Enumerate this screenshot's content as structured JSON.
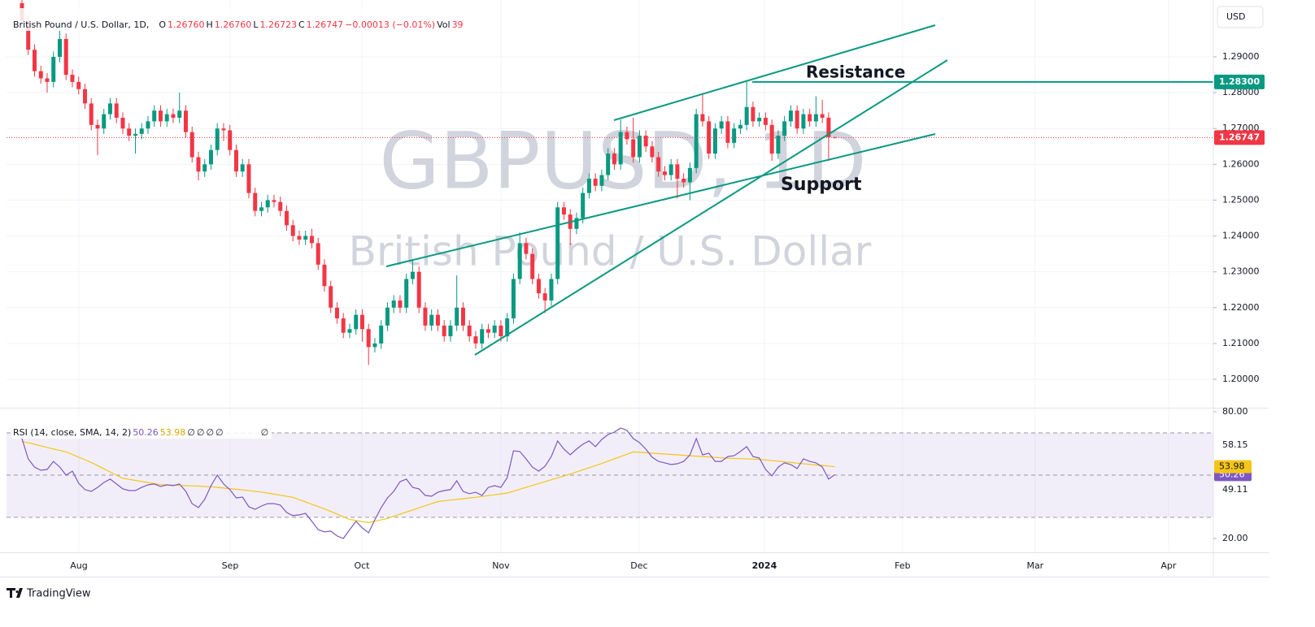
{
  "header": {
    "symbol": "British Pound / U.S. Dollar, 1D,",
    "ohlc": [
      {
        "key": "O",
        "value": "1.26760"
      },
      {
        "key": "H",
        "value": "1.26760"
      },
      {
        "key": "L",
        "value": "1.26723"
      },
      {
        "key": "C",
        "value": "1.26747"
      }
    ],
    "change": "−0.00013 (−0.01%)",
    "volume": {
      "key": "Vol",
      "value": "39"
    },
    "currency": "USD"
  },
  "watermark": {
    "title": "GBPUSD, 1D",
    "subtitle": "British Pound / U.S. Dollar"
  },
  "annotations": {
    "resistance": "Resistance",
    "support": "Support"
  },
  "footer": "TradingView",
  "chart_data": [
    {
      "type": "candlestick",
      "up_color": "#089981",
      "down_color": "#f23645",
      "open": [
        1.305,
        1.3,
        1.292,
        1.286,
        1.284,
        1.283,
        1.29,
        1.295,
        1.285,
        1.283,
        1.281,
        1.277,
        1.271,
        1.27,
        1.274,
        1.277,
        1.273,
        1.27,
        1.268,
        1.2685,
        1.27,
        1.272,
        1.275,
        1.272,
        1.274,
        1.273,
        1.275,
        1.269,
        1.262,
        1.258,
        1.26,
        1.264,
        1.27,
        1.2695,
        1.264,
        1.258,
        1.26,
        1.252,
        1.247,
        1.248,
        1.25,
        1.2495,
        1.247,
        1.243,
        1.24,
        1.239,
        1.24,
        1.238,
        1.232,
        1.226,
        1.22,
        1.217,
        1.213,
        1.214,
        1.218,
        1.214,
        1.209,
        1.21,
        1.215,
        1.22,
        1.222,
        1.22,
        1.228,
        1.23,
        1.22,
        1.215,
        1.218,
        1.215,
        1.212,
        1.215,
        1.22,
        1.215,
        1.212,
        1.21,
        1.214,
        1.213,
        1.215,
        1.212,
        1.217,
        1.228,
        1.238,
        1.235,
        1.228,
        1.224,
        1.222,
        1.228,
        1.248,
        1.246,
        1.242,
        1.245,
        1.252,
        1.256,
        1.254,
        1.257,
        1.263,
        1.26,
        1.269,
        1.267,
        1.262,
        1.268,
        1.265,
        1.262,
        1.258,
        1.257,
        1.26,
        1.256,
        1.255,
        1.259,
        1.274,
        1.272,
        1.263,
        1.27,
        1.272,
        1.266,
        1.27,
        1.271,
        1.276,
        1.272,
        1.273,
        1.271,
        1.263,
        1.268,
        1.272,
        1.275,
        1.27,
        1.274,
        1.272,
        1.274,
        1.273,
        1.2676
      ],
      "high": [
        1.3065,
        1.3015,
        1.2935,
        1.2875,
        1.2855,
        1.2915,
        1.299,
        1.2965,
        1.2865,
        1.2845,
        1.2825,
        1.2785,
        1.2725,
        1.2755,
        1.2785,
        1.2785,
        1.2745,
        1.2715,
        1.27,
        1.2715,
        1.2735,
        1.2765,
        1.2765,
        1.2755,
        1.2755,
        1.28,
        1.2765,
        1.2705,
        1.2635,
        1.2615,
        1.2655,
        1.2715,
        1.2715,
        1.271,
        1.2655,
        1.2615,
        1.2615,
        1.2535,
        1.2495,
        1.2515,
        1.2515,
        1.251,
        1.2485,
        1.2445,
        1.2415,
        1.2415,
        1.242,
        1.2395,
        1.2335,
        1.2275,
        1.2215,
        1.2185,
        1.2155,
        1.2195,
        1.2195,
        1.2155,
        1.2115,
        1.2165,
        1.2215,
        1.2235,
        1.2235,
        1.2295,
        1.2335,
        1.2315,
        1.2215,
        1.2195,
        1.2195,
        1.2165,
        1.2165,
        1.229,
        1.2215,
        1.2165,
        1.2135,
        1.2155,
        1.2155,
        1.2165,
        1.2165,
        1.2185,
        1.2295,
        1.241,
        1.2395,
        1.2365,
        1.2295,
        1.2255,
        1.2295,
        1.2495,
        1.2495,
        1.2475,
        1.2465,
        1.2535,
        1.2575,
        1.2575,
        1.2585,
        1.2645,
        1.2645,
        1.2725,
        1.2705,
        1.273,
        1.2695,
        1.2695,
        1.2665,
        1.2635,
        1.2595,
        1.2615,
        1.2615,
        1.2575,
        1.2605,
        1.2755,
        1.2795,
        1.2735,
        1.2715,
        1.2735,
        1.2735,
        1.2715,
        1.2725,
        1.283,
        1.2775,
        1.2745,
        1.2745,
        1.2725,
        1.2695,
        1.2735,
        1.2765,
        1.2765,
        1.2755,
        1.2755,
        1.279,
        1.278,
        1.2745,
        1.2676
      ],
      "low": [
        1.2985,
        1.2905,
        1.2845,
        1.2825,
        1.28,
        1.2815,
        1.2885,
        1.2835,
        1.2815,
        1.2795,
        1.2755,
        1.2695,
        1.2625,
        1.2685,
        1.2725,
        1.2715,
        1.2685,
        1.2665,
        1.263,
        1.267,
        1.2685,
        1.2705,
        1.2705,
        1.2705,
        1.2715,
        1.2715,
        1.2675,
        1.2605,
        1.2555,
        1.2565,
        1.2585,
        1.2625,
        1.2665,
        1.2625,
        1.2565,
        1.2565,
        1.2505,
        1.2455,
        1.2455,
        1.2465,
        1.248,
        1.2455,
        1.2415,
        1.2385,
        1.2375,
        1.2375,
        1.2365,
        1.2305,
        1.2245,
        1.2185,
        1.2155,
        1.2115,
        1.2115,
        1.2125,
        1.2105,
        1.204,
        1.2075,
        1.2085,
        1.2135,
        1.2185,
        1.2185,
        1.2185,
        1.2265,
        1.2185,
        1.2135,
        1.2135,
        1.2135,
        1.2105,
        1.2105,
        1.2135,
        1.2135,
        1.2105,
        1.2085,
        1.2085,
        1.2115,
        1.2115,
        1.2105,
        1.2105,
        1.2155,
        1.2265,
        1.2335,
        1.2265,
        1.2225,
        1.2185,
        1.2205,
        1.2265,
        1.2445,
        1.2375,
        1.2405,
        1.2435,
        1.2505,
        1.2525,
        1.2525,
        1.2555,
        1.2585,
        1.2585,
        1.2655,
        1.2605,
        1.2605,
        1.2635,
        1.2605,
        1.2565,
        1.2555,
        1.2555,
        1.2505,
        1.2535,
        1.25,
        1.2575,
        1.2705,
        1.2615,
        1.2615,
        1.2685,
        1.2645,
        1.2645,
        1.2685,
        1.2695,
        1.2705,
        1.2705,
        1.2695,
        1.261,
        1.2615,
        1.2665,
        1.2705,
        1.2685,
        1.2685,
        1.2705,
        1.2705,
        1.2715,
        1.261,
        1.26723
      ],
      "close": [
        1.3,
        1.292,
        1.286,
        1.284,
        1.283,
        1.29,
        1.295,
        1.285,
        1.283,
        1.281,
        1.277,
        1.271,
        1.27,
        1.274,
        1.277,
        1.273,
        1.27,
        1.268,
        1.2685,
        1.27,
        1.272,
        1.275,
        1.272,
        1.274,
        1.273,
        1.275,
        1.269,
        1.262,
        1.258,
        1.26,
        1.264,
        1.27,
        1.2695,
        1.264,
        1.258,
        1.26,
        1.252,
        1.247,
        1.248,
        1.25,
        1.2495,
        1.247,
        1.243,
        1.24,
        1.239,
        1.24,
        1.238,
        1.232,
        1.226,
        1.22,
        1.217,
        1.213,
        1.214,
        1.218,
        1.214,
        1.209,
        1.21,
        1.215,
        1.22,
        1.222,
        1.22,
        1.228,
        1.23,
        1.22,
        1.215,
        1.218,
        1.215,
        1.212,
        1.215,
        1.22,
        1.215,
        1.212,
        1.21,
        1.214,
        1.213,
        1.215,
        1.212,
        1.217,
        1.228,
        1.238,
        1.235,
        1.228,
        1.224,
        1.222,
        1.228,
        1.248,
        1.246,
        1.242,
        1.245,
        1.252,
        1.256,
        1.254,
        1.257,
        1.263,
        1.26,
        1.269,
        1.267,
        1.262,
        1.268,
        1.265,
        1.262,
        1.258,
        1.257,
        1.26,
        1.256,
        1.255,
        1.259,
        1.274,
        1.272,
        1.263,
        1.27,
        1.272,
        1.266,
        1.27,
        1.271,
        1.276,
        1.272,
        1.273,
        1.271,
        1.263,
        1.268,
        1.272,
        1.275,
        1.27,
        1.274,
        1.272,
        1.274,
        1.273,
        1.2676,
        1.26747
      ],
      "xlim": [
        -2.45,
        189.05
      ],
      "ylim": [
        1.19207,
        1.30587
      ],
      "yticks": [
        {
          "value": 1.2,
          "label": "1.20000"
        },
        {
          "value": 1.21,
          "label": "1.21000"
        },
        {
          "value": 1.22,
          "label": "1.22000"
        },
        {
          "value": 1.23,
          "label": "1.23000"
        },
        {
          "value": 1.24,
          "label": "1.24000"
        },
        {
          "value": 1.25,
          "label": "1.25000"
        },
        {
          "value": 1.26,
          "label": "1.26000"
        },
        {
          "value": 1.27,
          "label": "1.27000"
        },
        {
          "value": 1.28,
          "label": "1.28000"
        },
        {
          "value": 1.29,
          "label": "1.29000"
        }
      ],
      "hline": {
        "value": 1.283,
        "label": "1.28300",
        "color": "#089981"
      },
      "grid": true
    },
    {
      "type": "line",
      "title": "RSI (14, close, SMA, 14, 2)",
      "series": [
        {
          "color": "#7e57c2",
          "values": [
            67.3,
            57.7,
            53.8,
            52.3,
            52.7,
            56.5,
            53.8,
            50.0,
            51.9,
            46.2,
            43.1,
            42.3,
            44.2,
            46.5,
            48.1,
            45.8,
            43.5,
            42.7,
            42.7,
            44.2,
            45.4,
            45.8,
            44.6,
            45.4,
            45.0,
            45.8,
            42.3,
            36.5,
            34.6,
            38.5,
            45.0,
            50.0,
            45.8,
            43.1,
            39.2,
            39.6,
            35.0,
            33.8,
            35.4,
            36.5,
            36.5,
            35.8,
            32.3,
            30.8,
            31.2,
            31.9,
            28.1,
            24.2,
            23.1,
            23.5,
            21.2,
            20.0,
            24.2,
            28.1,
            25.0,
            22.7,
            28.8,
            34.6,
            39.2,
            42.3,
            46.9,
            48.1,
            44.2,
            43.5,
            40.4,
            40.0,
            41.9,
            42.7,
            43.1,
            47.3,
            42.3,
            41.2,
            41.9,
            40.4,
            44.2,
            45.0,
            44.2,
            48.8,
            61.5,
            61.2,
            57.7,
            53.8,
            51.9,
            54.2,
            58.8,
            66.2,
            62.3,
            59.6,
            62.3,
            64.6,
            66.2,
            63.5,
            66.9,
            69.2,
            70.4,
            72.3,
            71.2,
            67.3,
            65.4,
            62.3,
            58.5,
            56.5,
            55.8,
            55.0,
            55.4,
            56.5,
            59.6,
            67.3,
            59.6,
            60.4,
            56.5,
            56.5,
            58.8,
            59.2,
            61.2,
            63.5,
            58.8,
            58.1,
            52.7,
            49.6,
            53.8,
            55.8,
            55.0,
            53.1,
            57.7,
            56.5,
            55.8,
            53.8,
            48.1,
            50.26
          ]
        },
        {
          "color": "#f5c518",
          "values": [
            66.0,
            65.3,
            64.6,
            63.9,
            63.1,
            62.4,
            61.7,
            61.0,
            59.8,
            58.5,
            57.3,
            56.0,
            54.5,
            53.0,
            51.5,
            50.0,
            48.5,
            48.0,
            47.5,
            47.0,
            46.5,
            46.0,
            45.5,
            45.4,
            45.3,
            45.1,
            45.0,
            44.9,
            44.8,
            44.6,
            44.5,
            44.2,
            43.9,
            43.6,
            43.3,
            43.0,
            42.6,
            42.3,
            42.0,
            41.5,
            41.0,
            40.5,
            40.0,
            39.5,
            38.4,
            37.3,
            36.2,
            35.1,
            34.0,
            32.8,
            31.5,
            30.3,
            29.0,
            28.5,
            28.0,
            27.5,
            28.2,
            28.8,
            29.5,
            30.5,
            31.5,
            32.5,
            33.5,
            34.5,
            35.5,
            36.5,
            37.5,
            37.8,
            38.2,
            38.5,
            38.8,
            39.2,
            39.5,
            39.9,
            40.3,
            40.7,
            41.1,
            41.5,
            42.4,
            43.3,
            44.2,
            45.1,
            46.0,
            46.9,
            47.8,
            48.7,
            49.6,
            50.5,
            51.5,
            52.5,
            53.5,
            54.5,
            55.5,
            56.6,
            57.7,
            58.8,
            59.9,
            61.0,
            60.8,
            60.6,
            60.4,
            60.2,
            60.0,
            59.8,
            59.6,
            59.4,
            59.2,
            59.0,
            58.8,
            58.6,
            58.4,
            58.2,
            58.0,
            57.9,
            57.8,
            57.7,
            57.6,
            57.5,
            57.2,
            56.9,
            56.6,
            56.3,
            56.0,
            55.7,
            55.4,
            55.1,
            54.8,
            54.6,
            54.3,
            53.98
          ]
        }
      ],
      "band_color": "#7e57c2",
      "bands": [
        70,
        50,
        30
      ],
      "status": [
        "∅",
        "∅",
        "∅",
        "∅",
        "∅"
      ],
      "scale_labels": [
        58.15,
        49.11
      ],
      "xlim": [
        -2.45,
        189.05
      ],
      "ylim": [
        13.46,
        81.54
      ],
      "yticks": [
        {
          "value": 80,
          "label": "80.00"
        },
        {
          "value": 20,
          "label": "20.00"
        }
      ],
      "xticks": [
        {
          "value": 9.03,
          "label": "Aug"
        },
        {
          "value": 33.03,
          "label": "Sep"
        },
        {
          "value": 53.94,
          "label": "Oct"
        },
        {
          "value": 76.0,
          "label": "Nov"
        },
        {
          "value": 97.94,
          "label": "Dec"
        },
        {
          "value": 117.81,
          "label": "2024"
        },
        {
          "value": 139.74,
          "label": "Feb"
        },
        {
          "value": 160.77,
          "label": "Mar"
        },
        {
          "value": 181.94,
          "label": "Apr"
        }
      ]
    }
  ]
}
